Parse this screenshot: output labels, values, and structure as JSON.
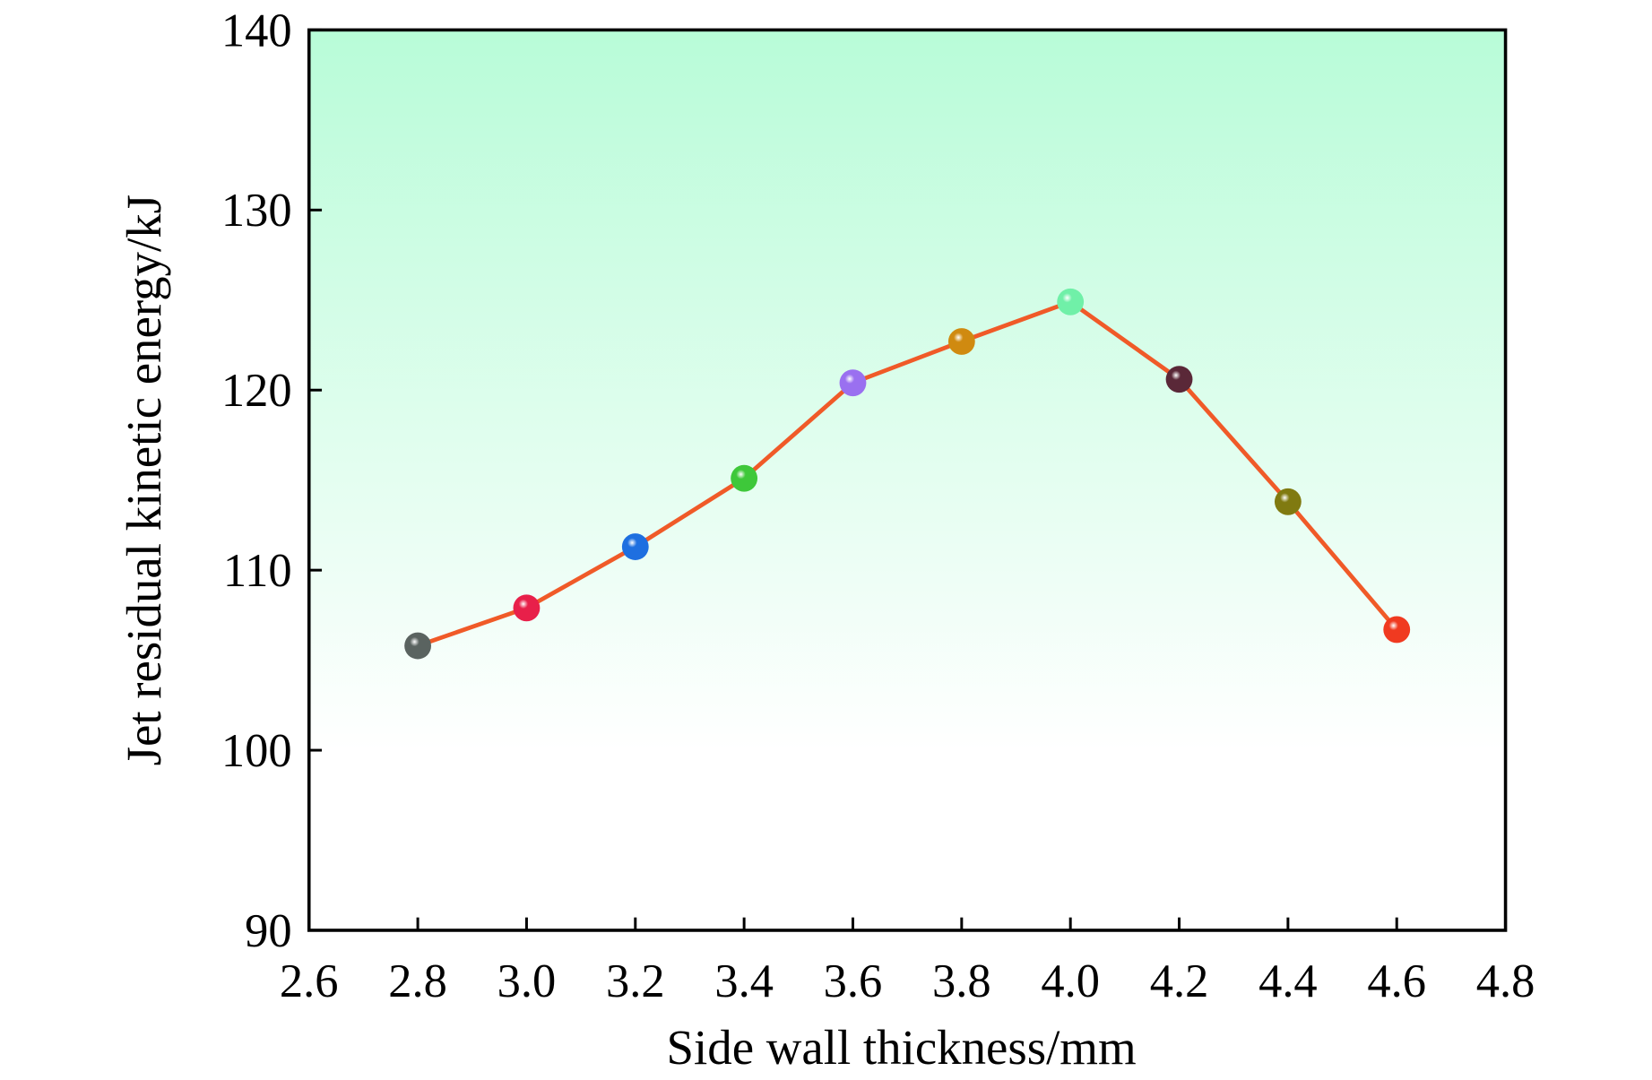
{
  "chart_data": {
    "type": "line",
    "title": "",
    "xlabel": "Side wall thickness/mm",
    "ylabel": "Jet residual kinetic energy/kJ",
    "xlim": [
      2.6,
      4.8
    ],
    "ylim": [
      90,
      140
    ],
    "xticks": [
      "2.6",
      "2.8",
      "3.0",
      "3.2",
      "3.4",
      "3.6",
      "3.8",
      "4.0",
      "4.2",
      "4.4",
      "4.6",
      "4.8"
    ],
    "yticks": [
      "90",
      "100",
      "110",
      "120",
      "130",
      "140"
    ],
    "grid": false,
    "legend": "none",
    "series": [
      {
        "name": "Jet residual kinetic energy",
        "line_color": "#f05a28",
        "x": [
          2.8,
          3.0,
          3.2,
          3.4,
          3.6,
          3.8,
          4.0,
          4.2,
          4.4,
          4.6
        ],
        "y": [
          105.8,
          107.9,
          111.3,
          115.1,
          120.4,
          122.7,
          124.9,
          120.6,
          113.8,
          106.7
        ],
        "marker_colors": [
          "#5a6360",
          "#e8204a",
          "#1e6fe0",
          "#3ec83a",
          "#9a70f0",
          "#d08a10",
          "#70f0a8",
          "#5a2838",
          "#807a10",
          "#f03a20"
        ]
      }
    ],
    "background_gradient": [
      "#b8fcd8",
      "#ffffff"
    ]
  }
}
